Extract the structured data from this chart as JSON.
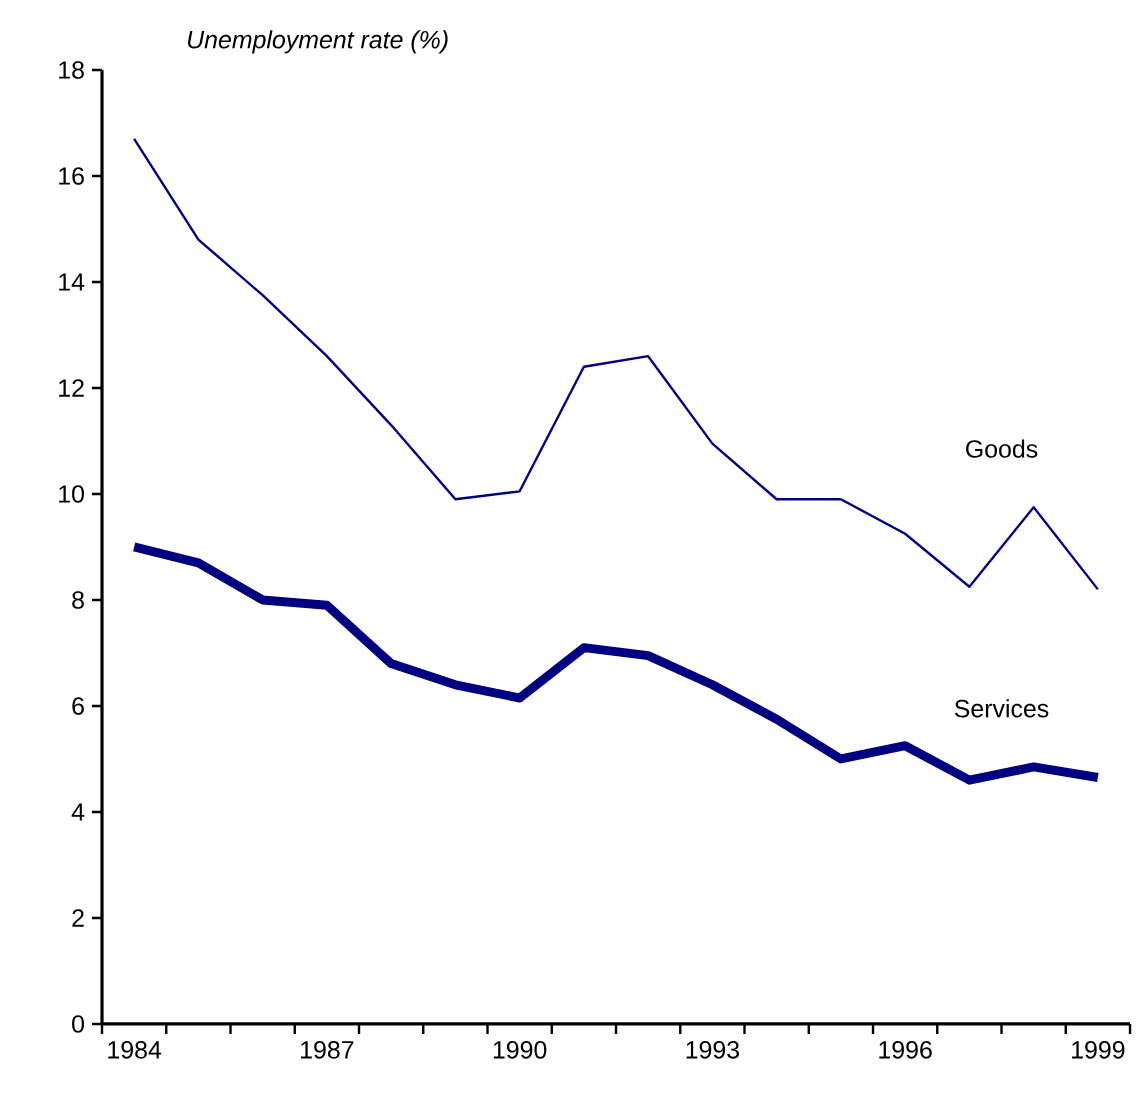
{
  "chart_data": {
    "type": "line",
    "ylabel": "*Unemployment rate (%)*",
    "x": [
      1984,
      1985,
      1986,
      1987,
      1988,
      1989,
      1990,
      1991,
      1992,
      1993,
      1994,
      1995,
      1996,
      1997,
      1998,
      1999
    ],
    "series": [
      {
        "name": "Goods",
        "color": "#000080",
        "values": [
          16.7,
          14.8,
          13.75,
          12.6,
          11.3,
          9.9,
          10.05,
          12.4,
          12.6,
          10.95,
          9.9,
          9.9,
          9.25,
          8.25,
          9.75,
          8.2
        ]
      },
      {
        "name": "Services",
        "color": "#000080",
        "values": [
          9.0,
          8.7,
          8.0,
          7.9,
          6.8,
          6.4,
          6.15,
          7.1,
          6.95,
          6.4,
          5.75,
          5.0,
          5.25,
          4.6,
          4.85,
          4.65
        ]
      }
    ],
    "xlim": [
      1983.5,
      1999.5
    ],
    "xticks": [
      1984,
      1987,
      1990,
      1993,
      1996,
      1999
    ],
    "ylim": [
      0,
      18
    ],
    "yticks": [
      0,
      2,
      4,
      6,
      8,
      10,
      12,
      14,
      16,
      18
    ],
    "grid": false,
    "legend": false,
    "marker": "none",
    "line_style": "solid"
  }
}
